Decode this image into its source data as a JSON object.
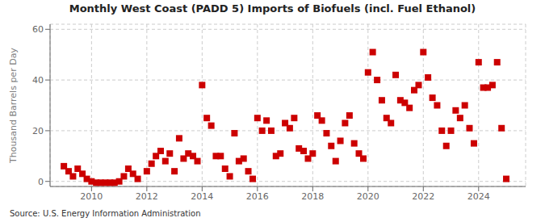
{
  "chart_data": {
    "type": "scatter",
    "title": "Monthly West Coast (PADD 5) Imports of Biofuels (incl. Fuel Ethanol)",
    "ylabel": "Thousand Barrels per Day",
    "source": "Source: U.S. Energy Information Administration",
    "color": "#cc0000",
    "marker": "square",
    "grid": true,
    "xlim": [
      2008.5,
      2025.7
    ],
    "xticks": [
      2010,
      2012,
      2014,
      2016,
      2018,
      2020,
      2022,
      2024
    ],
    "ylim": [
      -2,
      62
    ],
    "yticks": [
      0,
      20,
      40,
      60
    ],
    "x": [
      2009.0,
      2009.17,
      2009.33,
      2009.5,
      2009.67,
      2009.83,
      2010.0,
      2010.17,
      2010.33,
      2010.5,
      2010.67,
      2010.83,
      2011.0,
      2011.17,
      2011.33,
      2011.5,
      2011.67,
      2012.0,
      2012.17,
      2012.33,
      2012.5,
      2012.67,
      2012.83,
      2013.0,
      2013.17,
      2013.33,
      2013.5,
      2013.67,
      2013.83,
      2014.0,
      2014.17,
      2014.33,
      2014.5,
      2014.67,
      2014.83,
      2015.0,
      2015.17,
      2015.33,
      2015.5,
      2015.67,
      2015.83,
      2016.0,
      2016.17,
      2016.33,
      2016.5,
      2016.67,
      2016.83,
      2017.0,
      2017.17,
      2017.33,
      2017.5,
      2017.67,
      2017.83,
      2018.0,
      2018.17,
      2018.33,
      2018.5,
      2018.67,
      2018.83,
      2019.0,
      2019.17,
      2019.33,
      2019.5,
      2019.67,
      2019.83,
      2020.0,
      2020.17,
      2020.33,
      2020.5,
      2020.67,
      2020.83,
      2021.0,
      2021.17,
      2021.33,
      2021.5,
      2021.67,
      2021.83,
      2022.0,
      2022.17,
      2022.33,
      2022.5,
      2022.67,
      2022.83,
      2023.0,
      2023.17,
      2023.33,
      2023.5,
      2023.67,
      2023.83,
      2024.0,
      2024.17,
      2024.33,
      2024.5,
      2024.67,
      2024.83,
      2025.0
    ],
    "values": [
      6,
      4,
      2,
      5,
      3,
      1,
      0,
      -0.5,
      -0.5,
      -0.5,
      -0.5,
      -0.5,
      0,
      2,
      5,
      3,
      1,
      4,
      7,
      10,
      12,
      8,
      11,
      4,
      17,
      9,
      11,
      10,
      8,
      38,
      25,
      22,
      10,
      10,
      5,
      2,
      19,
      8,
      9,
      4,
      1,
      25,
      20,
      24,
      20,
      10,
      11,
      23,
      21,
      25,
      13,
      12,
      9,
      11,
      26,
      24,
      19,
      14,
      8,
      16,
      23,
      26,
      15,
      11,
      9,
      43,
      51,
      40,
      32,
      25,
      23,
      42,
      32,
      31,
      29,
      36,
      38,
      51,
      41,
      33,
      30,
      20,
      14,
      20,
      28,
      25,
      30,
      21,
      15,
      47,
      37,
      37,
      38,
      47,
      21,
      1
    ]
  }
}
